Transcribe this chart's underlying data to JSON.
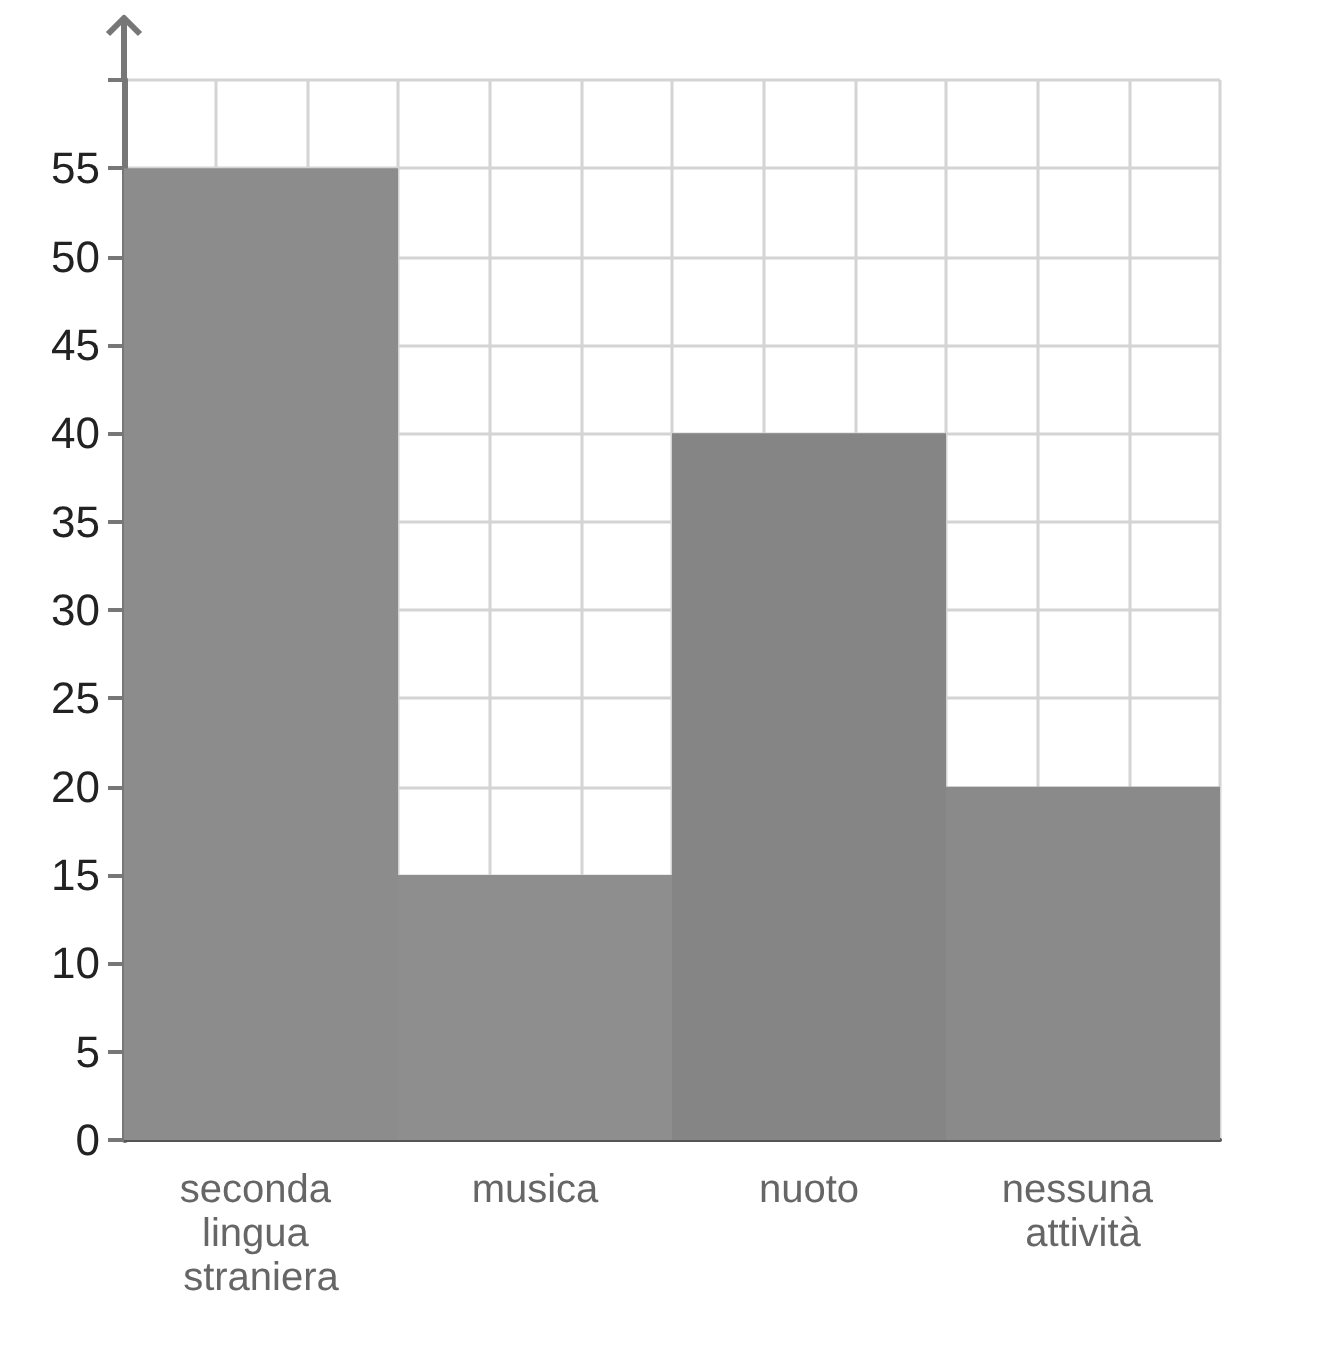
{
  "chart_data": {
    "type": "bar",
    "categories": [
      "seconda lingua straniera",
      "musica",
      "nuoto",
      "nessuna attività"
    ],
    "values": [
      55,
      15,
      40,
      20
    ],
    "colors": [
      "#8c8c8c",
      "#8e8e8e",
      "#858585",
      "#8a8a8a"
    ],
    "ylim": [
      0,
      60
    ],
    "yticks": [
      0,
      5,
      10,
      15,
      20,
      25,
      30,
      35,
      40,
      45,
      50,
      55,
      {
        "value": 60,
        "label": null
      }
    ],
    "grid": true
  }
}
